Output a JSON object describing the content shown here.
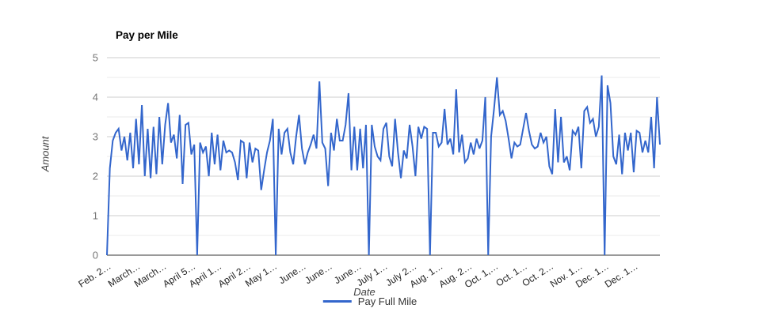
{
  "title": "Pay per Mile",
  "axis": {
    "x_title": "Date",
    "y_title": "Amount"
  },
  "legend": {
    "label": "Pay Full Mile"
  },
  "colors": {
    "series": "#3366cc",
    "major_gridline": "#cccccc",
    "minor_gridline": "#ebebeb",
    "axis_line": "#333333",
    "y_tick_text": "#757575",
    "x_tick_text": "#222222"
  },
  "chart_data": {
    "type": "line",
    "title": "Pay per Mile",
    "xlabel": "Date",
    "ylabel": "Amount",
    "ylim": [
      0,
      5
    ],
    "yticks": [
      0,
      1,
      2,
      3,
      4,
      5
    ],
    "minor_yticks": [
      0.5,
      1.5,
      2.5,
      3.5,
      4.5
    ],
    "grid": true,
    "legend_position": "bottom",
    "x_tick_labels": [
      "Feb. 2…",
      "March…",
      "March…",
      "April 5…",
      "April 1…",
      "April 2…",
      "May 1…",
      "June…",
      "June…",
      "June…",
      "July 1…",
      "July 2…",
      "Aug. 1…",
      "Aug. 2…",
      "Oct. 1,…",
      "Oct. 1…",
      "Oct. 2…",
      "Nov. 1…",
      "Dec. 1…",
      "Dec. 1…"
    ],
    "series": [
      {
        "name": "Pay Full Mile",
        "color": "#3366cc",
        "values": [
          0,
          2.2,
          2.9,
          3.1,
          3.2,
          2.65,
          3,
          2.4,
          3.1,
          2.2,
          3.45,
          2.3,
          3.8,
          2,
          3.2,
          1.95,
          3.25,
          2.05,
          3.5,
          2.3,
          3.3,
          3.85,
          2.85,
          3.05,
          2.45,
          3.55,
          1.8,
          3.3,
          3.35,
          2.55,
          2.8,
          0,
          2.85,
          2.6,
          2.75,
          2,
          3.1,
          2.3,
          3.05,
          2.15,
          2.9,
          2.6,
          2.65,
          2.6,
          2.35,
          1.9,
          2.9,
          2.85,
          1.95,
          2.85,
          2.35,
          2.7,
          2.65,
          1.65,
          2.15,
          2.6,
          2.9,
          3.45,
          0,
          3.2,
          2.55,
          3.1,
          3.2,
          2.6,
          2.3,
          3,
          3.55,
          2.7,
          2.3,
          2.6,
          2.8,
          3.05,
          2.7,
          4.4,
          2.85,
          2.7,
          1.75,
          3.1,
          2.65,
          3.45,
          2.9,
          2.9,
          3.3,
          4.1,
          2.15,
          3.25,
          2.15,
          3.2,
          2.2,
          3.3,
          0,
          3.3,
          2.75,
          2.5,
          2.4,
          3.2,
          3.35,
          2.5,
          2.25,
          3.45,
          2.6,
          1.95,
          2.65,
          2.45,
          3.3,
          2.75,
          2,
          3.25,
          2.95,
          3.25,
          3.2,
          0,
          3.1,
          3.1,
          2.75,
          2.85,
          3.7,
          2.8,
          2.95,
          2.55,
          4.2,
          2.6,
          3.05,
          2.35,
          2.45,
          2.85,
          2.55,
          2.95,
          2.7,
          2.9,
          4,
          0,
          3,
          3.7,
          4.5,
          3.55,
          3.65,
          3.4,
          2.95,
          2.45,
          2.85,
          2.75,
          2.8,
          3.2,
          3.6,
          3.15,
          2.8,
          2.7,
          2.75,
          3.1,
          2.85,
          3,
          2.25,
          2.05,
          3.7,
          2.35,
          3.5,
          2.35,
          2.5,
          2.15,
          3.15,
          3.05,
          3.25,
          2.2,
          3.65,
          3.75,
          3.35,
          3.45,
          3,
          3.25,
          4.55,
          0,
          4.3,
          3.85,
          2.5,
          2.3,
          3.05,
          2.05,
          3.1,
          2.65,
          3.1,
          2.1,
          3.15,
          3.1,
          2.6,
          2.9,
          2.6,
          3.5,
          2.2,
          4,
          2.8
        ]
      }
    ]
  }
}
